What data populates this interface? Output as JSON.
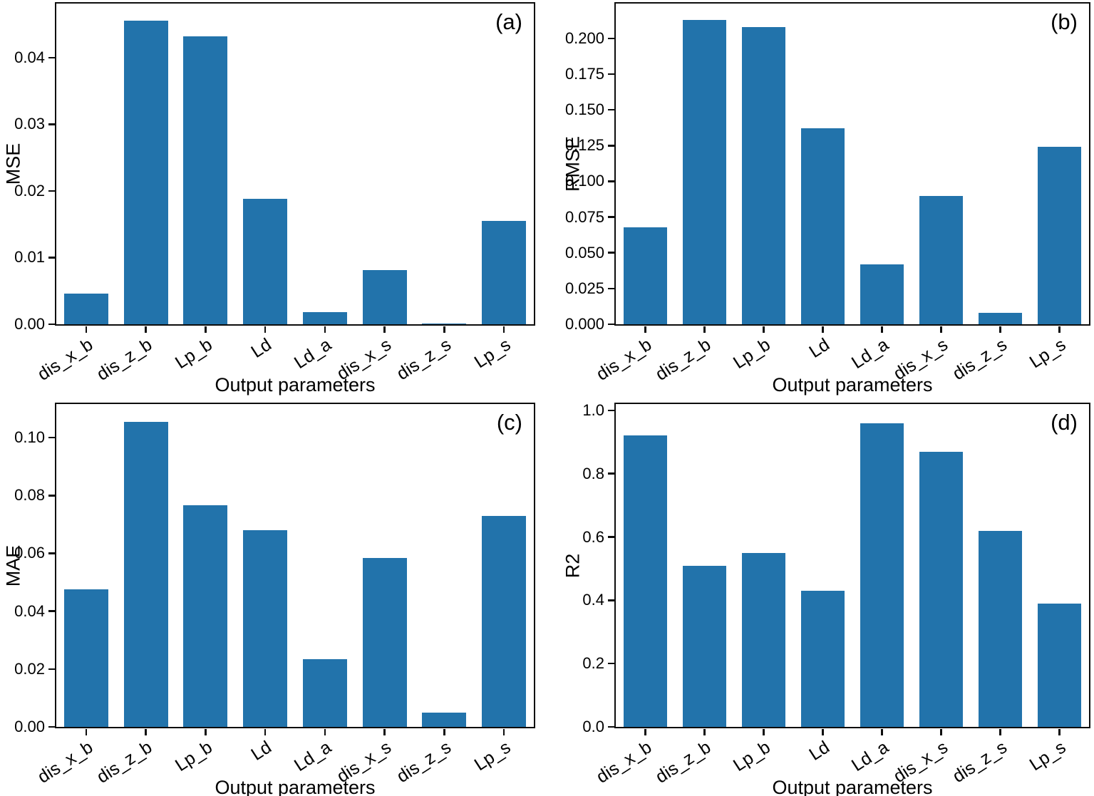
{
  "figure": {
    "background": "#ffffff",
    "bar_color": "#2273ab",
    "axis_color": "#0d0d0d",
    "x_axis_title": "Output parameters"
  },
  "chart_data": [
    {
      "type": "bar",
      "panel_label": "(a)",
      "ylabel": "MSE",
      "xlabel": "Output parameters",
      "categories": [
        "dis_x_b",
        "dis_z_b",
        "Lp_b",
        "Ld",
        "Ld_a",
        "dis_x_s",
        "dis_z_s",
        "Lp_s"
      ],
      "values": [
        0.0046,
        0.0455,
        0.0432,
        0.0188,
        0.0018,
        0.0081,
        0.0001,
        0.0155
      ],
      "ylim": [
        0,
        0.0481
      ],
      "ytick_values": [
        0.0,
        0.01,
        0.02,
        0.03,
        0.04
      ],
      "ytick_labels": [
        "0.00",
        "0.01",
        "0.02",
        "0.03",
        "0.04"
      ],
      "grid": false,
      "legend": "none"
    },
    {
      "type": "bar",
      "panel_label": "(b)",
      "ylabel": "RMSE",
      "xlabel": "Output parameters",
      "categories": [
        "dis_x_b",
        "dis_z_b",
        "Lp_b",
        "Ld",
        "Ld_a",
        "dis_x_s",
        "dis_z_s",
        "Lp_s"
      ],
      "values": [
        0.068,
        0.213,
        0.208,
        0.137,
        0.042,
        0.09,
        0.008,
        0.124
      ],
      "ylim": [
        0,
        0.2244
      ],
      "ytick_values": [
        0.0,
        0.025,
        0.05,
        0.075,
        0.1,
        0.125,
        0.15,
        0.175,
        0.2
      ],
      "ytick_labels": [
        "0.000",
        "0.025",
        "0.050",
        "0.075",
        "0.100",
        "0.125",
        "0.150",
        "0.175",
        "0.200"
      ],
      "grid": false,
      "legend": "none"
    },
    {
      "type": "bar",
      "panel_label": "(c)",
      "ylabel": "MAE",
      "xlabel": "Output parameters",
      "categories": [
        "dis_x_b",
        "dis_z_b",
        "Lp_b",
        "Ld",
        "Ld_a",
        "dis_x_s",
        "dis_z_s",
        "Lp_s"
      ],
      "values": [
        0.0475,
        0.1055,
        0.0765,
        0.068,
        0.0235,
        0.0585,
        0.005,
        0.073
      ],
      "ylim": [
        0,
        0.1116
      ],
      "ytick_values": [
        0.0,
        0.02,
        0.04,
        0.06,
        0.08,
        0.1
      ],
      "ytick_labels": [
        "0.00",
        "0.02",
        "0.04",
        "0.06",
        "0.08",
        "0.10"
      ],
      "grid": false,
      "legend": "none"
    },
    {
      "type": "bar",
      "panel_label": "(d)",
      "ylabel": "R2",
      "xlabel": "Output parameters",
      "categories": [
        "dis_x_b",
        "dis_z_b",
        "Lp_b",
        "Ld",
        "Ld_a",
        "dis_x_s",
        "dis_z_s",
        "Lp_s"
      ],
      "values": [
        0.92,
        0.51,
        0.55,
        0.43,
        0.96,
        0.87,
        0.62,
        0.39
      ],
      "ylim": [
        0,
        1.02
      ],
      "ytick_values": [
        0.0,
        0.2,
        0.4,
        0.6,
        0.8,
        1.0
      ],
      "ytick_labels": [
        "0.0",
        "0.2",
        "0.4",
        "0.6",
        "0.8",
        "1.0"
      ],
      "grid": false,
      "legend": "none"
    }
  ]
}
